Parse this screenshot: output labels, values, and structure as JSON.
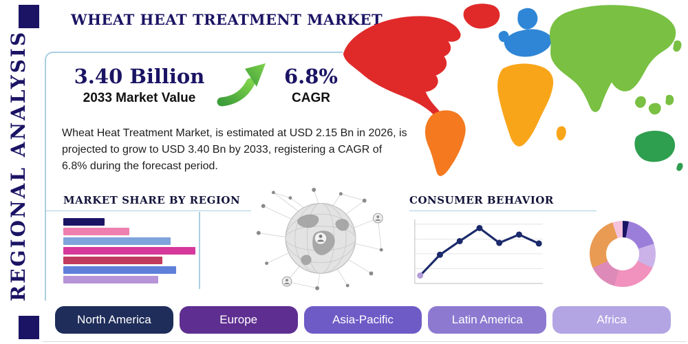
{
  "page": {
    "title": "WHEAT HEAT TREATMENT MARKET",
    "vertical_label": "REGIONAL ANALYSIS"
  },
  "stats": {
    "market_value": "3.40 Billion",
    "market_value_label": "2033 Market Value",
    "cagr_value": "6.8%",
    "cagr_label": "CAGR",
    "description": "Wheat Heat Treatment Market, is estimated at USD 2.15 Bn in 2026, is projected to grow to USD 3.40 Bn by 2033, registering a CAGR of 6.8% during the forecast period."
  },
  "sections": {
    "market_share": "MARKET SHARE BY REGION",
    "consumer_behavior": "CONSUMER BEHAVIOR"
  },
  "icons": {
    "growth_arrow": "growth-arrow-up-right",
    "growth_arrow_color": "#5cb848",
    "globe_network": "globe-network-graphic"
  },
  "region_buttons": [
    {
      "label": "North America",
      "color": "#1f2d5a"
    },
    {
      "label": "Europe",
      "color": "#5e2e91"
    },
    {
      "label": "Asia-Pacific",
      "color": "#6e5bc6"
    },
    {
      "label": "Latin America",
      "color": "#8d7ad0"
    },
    {
      "label": "Africa",
      "color": "#b3a5e3"
    }
  ],
  "chart_data": [
    {
      "type": "bar",
      "title": "MARKET SHARE BY REGION",
      "orientation": "horizontal",
      "categories": [
        "",
        "",
        "",
        "",
        "",
        "",
        ""
      ],
      "values": [
        30,
        48,
        78,
        96,
        72,
        82,
        69
      ],
      "unit": "relative share (bars unlabeled in source)",
      "xlim": [
        0,
        100
      ],
      "colors": [
        "#1b1464",
        "#ef7fae",
        "#7fa3dc",
        "#d6399b",
        "#c13b5e",
        "#5f7fd9",
        "#b793d8"
      ]
    },
    {
      "type": "line",
      "title": "CONSUMER BEHAVIOR",
      "x": [
        1,
        2,
        3,
        4,
        5,
        6,
        7
      ],
      "values": [
        10,
        45,
        68,
        90,
        65,
        79,
        64
      ],
      "ylim": [
        0,
        100
      ],
      "grid": "horizontal",
      "line_color": "#1b2a6b",
      "marker_color": "#1b2a6b",
      "first_marker_color": "#b39ddb"
    },
    {
      "type": "pie",
      "subtype": "donut",
      "segments": [
        {
          "value": 3,
          "color": "#1b1464"
        },
        {
          "value": 17,
          "color": "#9b7ed9"
        },
        {
          "value": 12,
          "color": "#cbb3ea"
        },
        {
          "value": 22,
          "color": "#f191bd"
        },
        {
          "value": 14,
          "color": "#de8ab8"
        },
        {
          "value": 27,
          "color": "#e99b53"
        },
        {
          "value": 5,
          "color": "#f5c3de"
        }
      ]
    }
  ],
  "map": {
    "regions": [
      {
        "name": "north-america",
        "color": "#e02a2a"
      },
      {
        "name": "greenland",
        "color": "#e02a2a"
      },
      {
        "name": "south-america",
        "color": "#f4791f"
      },
      {
        "name": "europe",
        "color": "#2f86d6"
      },
      {
        "name": "africa",
        "color": "#f9a51a"
      },
      {
        "name": "asia",
        "color": "#79c043"
      },
      {
        "name": "australia",
        "color": "#2e9e4f"
      }
    ]
  }
}
